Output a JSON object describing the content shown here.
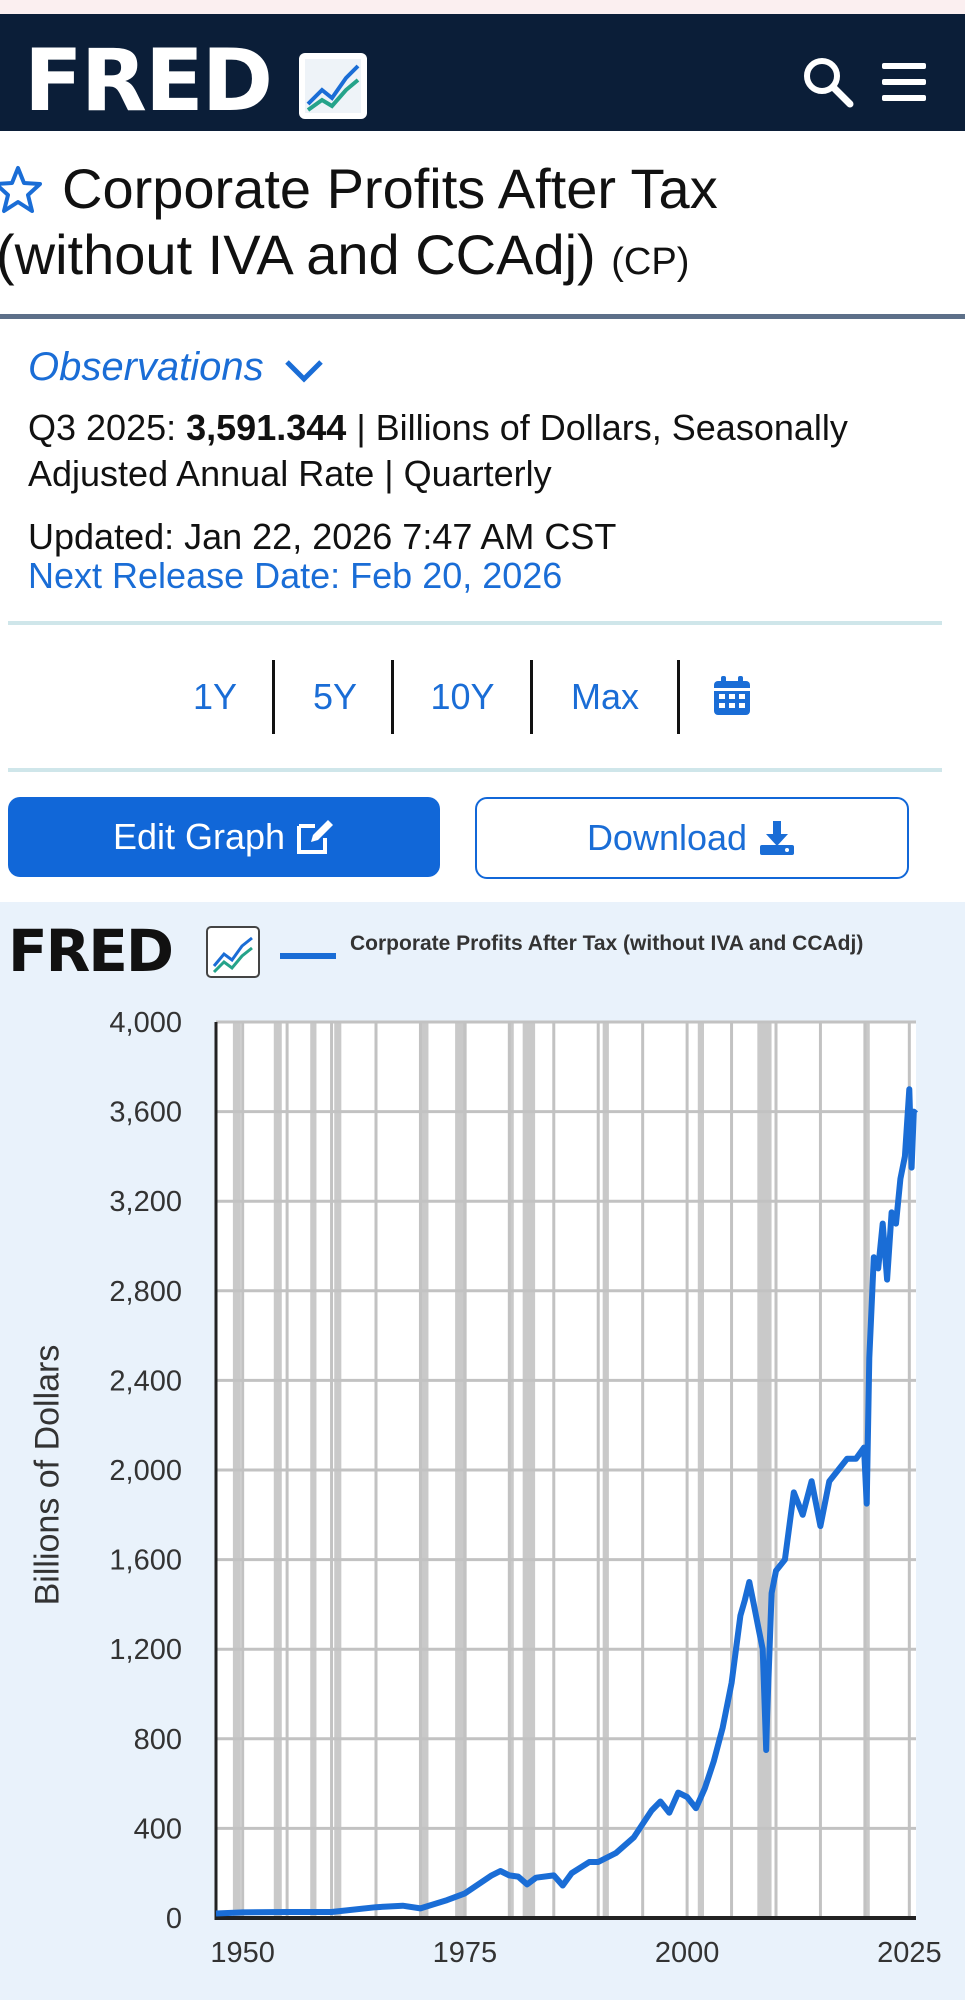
{
  "header": {
    "logo_text": "FRED",
    "logo_icon": "trend-chart-icon",
    "search_icon": "search-icon",
    "menu_icon": "hamburger-menu-icon"
  },
  "series": {
    "title_line1": "Corporate Profits After Tax",
    "title_line2": "(without IVA and CCAdj)",
    "series_id": "(CP)"
  },
  "observations": {
    "label": "Observations",
    "period": "Q3 2025:",
    "value": "3,591.344",
    "units_line": "| Billions of Dollars, Seasonally Adjusted Annual Rate | Quarterly",
    "updated": "Updated: Jan 22, 2026 7:47 AM CST",
    "next_release": "Next Release Date: Feb 20, 2026"
  },
  "ranges": [
    "1Y",
    "5Y",
    "10Y",
    "Max"
  ],
  "buttons": {
    "edit": "Edit Graph",
    "download": "Download"
  },
  "colors": {
    "header_bg": "#0b1e38",
    "accent": "#1a6dd6",
    "chart_bg": "#e9f2fb",
    "recession": "#c9c9c9"
  },
  "chart_data": {
    "type": "line",
    "title": "",
    "legend": "Corporate Profits After Tax (without IVA and CCAdj)",
    "xlabel": "",
    "ylabel": "Billions of Dollars",
    "ylim": [
      0,
      4000
    ],
    "xlim": [
      1947,
      2025.75
    ],
    "y_ticks": [
      "0",
      "400",
      "800",
      "1,200",
      "1,600",
      "2,000",
      "2,400",
      "2,800",
      "3,200",
      "3,600",
      "4,000"
    ],
    "x_ticks": [
      "1950",
      "1975",
      "2000",
      "2025"
    ],
    "grid": true,
    "legend_position": "top",
    "recessions": [
      [
        1948.9,
        1949.8
      ],
      [
        1953.5,
        1954.4
      ],
      [
        1957.6,
        1958.3
      ],
      [
        1960.3,
        1961.1
      ],
      [
        1969.9,
        1970.9
      ],
      [
        1973.9,
        1975.2
      ],
      [
        1980.0,
        1980.5
      ],
      [
        1981.5,
        1982.9
      ],
      [
        1990.5,
        1991.2
      ],
      [
        2001.2,
        2001.9
      ],
      [
        2007.9,
        2009.5
      ],
      [
        2020.1,
        2020.4
      ]
    ],
    "series": [
      {
        "name": "Corporate Profits After Tax (without IVA and CCAdj)",
        "x": [
          1947,
          1950,
          1955,
          1960,
          1965,
          1968,
          1970,
          1973,
          1975,
          1978,
          1979,
          1980,
          1981,
          1982,
          1983,
          1985,
          1986,
          1987,
          1989,
          1990,
          1992,
          1994,
          1995,
          1996,
          1997,
          1998,
          1999,
          2000,
          2001,
          2002,
          2003,
          2004,
          2005,
          2006,
          2006.5,
          2007,
          2007.5,
          2008,
          2008.5,
          2008.9,
          2009,
          2009.5,
          2010,
          2011,
          2012,
          2013,
          2014,
          2014.5,
          2015,
          2016,
          2017,
          2018,
          2019,
          2019.9,
          2020.2,
          2020.5,
          2021,
          2021.5,
          2022,
          2022.5,
          2023,
          2023.5,
          2024,
          2024.5,
          2025,
          2025.25,
          2025.5,
          2025.75
        ],
        "values": [
          20,
          25,
          27,
          27,
          48,
          55,
          43,
          80,
          110,
          190,
          210,
          190,
          185,
          150,
          180,
          190,
          145,
          200,
          250,
          250,
          290,
          360,
          420,
          480,
          520,
          470,
          560,
          540,
          490,
          580,
          700,
          850,
          1050,
          1350,
          1420,
          1500,
          1400,
          1300,
          1200,
          750,
          900,
          1450,
          1550,
          1600,
          1900,
          1800,
          1950,
          1850,
          1750,
          1950,
          2000,
          2050,
          2050,
          2100,
          1850,
          2500,
          2950,
          2900,
          3100,
          2850,
          3150,
          3100,
          3300,
          3400,
          3700,
          3350,
          3600,
          3591
        ]
      }
    ]
  }
}
